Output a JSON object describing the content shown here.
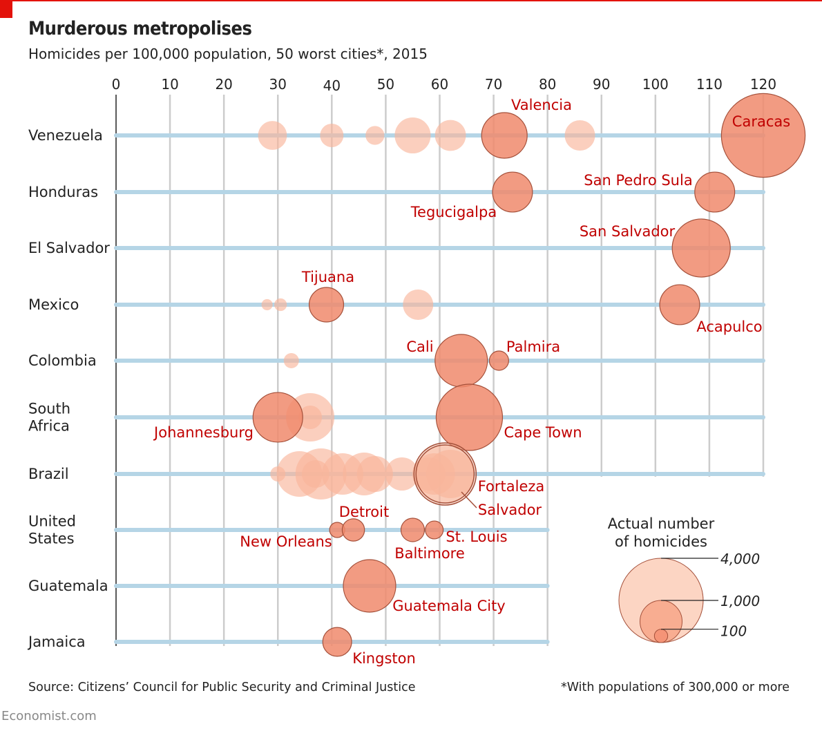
{
  "header": {
    "title": "Murderous metropolises",
    "subtitle": "Homicides per 100,000 population, 50 worst cities*, 2015"
  },
  "footer": {
    "source": "Source: Citizens’ Council for Public Security and Criminal Justice",
    "note": "*With populations of 300,000 or more",
    "brand": "Economist.com"
  },
  "colors": {
    "highlight": "#f08a6c",
    "highlight_stroke": "#a4503a",
    "other": "#f9b59b",
    "label": "#c00000",
    "row_line": "#b5d5e6",
    "grid": "#cccccc"
  },
  "chart_data": {
    "type": "scatter",
    "title": "Murderous metropolises",
    "subtitle": "Homicides per 100,000 population, 50 worst cities*, 2015",
    "xlim": [
      0,
      120
    ],
    "xticks": [
      0,
      10,
      20,
      30,
      40,
      50,
      60,
      70,
      80,
      90,
      100,
      110,
      120
    ],
    "grid": true,
    "size_encoding": "Actual number of homicides",
    "legend": {
      "title_lines": [
        "Actual number",
        "of homicides"
      ],
      "values": [
        4000,
        1000,
        100
      ],
      "labels": [
        "4,000",
        "1,000",
        "100"
      ],
      "placement": "bottom-right"
    },
    "rows": [
      {
        "country_lines": [
          "Venezuela"
        ],
        "max_axis": 120,
        "cities": [
          {
            "rate": 29,
            "homicides": 470
          },
          {
            "rate": 40,
            "homicides": 310
          },
          {
            "rate": 48,
            "homicides": 200
          },
          {
            "rate": 55,
            "homicides": 730
          },
          {
            "rate": 62,
            "homicides": 540
          },
          {
            "name": "Valencia",
            "rate": 72,
            "homicides": 1170,
            "highlight": true
          },
          {
            "rate": 86,
            "homicides": 520
          },
          {
            "name": "Caracas",
            "rate": 120,
            "homicides": 3950,
            "highlight": true
          }
        ]
      },
      {
        "country_lines": [
          "Honduras"
        ],
        "max_axis": 120,
        "cities": [
          {
            "name": "Tegucigalpa",
            "rate": 73.5,
            "homicides": 900,
            "highlight": true
          },
          {
            "name": "San Pedro Sula",
            "rate": 111,
            "homicides": 900,
            "highlight": true
          }
        ]
      },
      {
        "country_lines": [
          "El Salvador"
        ],
        "max_axis": 120,
        "cities": [
          {
            "name": "San Salvador",
            "rate": 108.5,
            "homicides": 1900,
            "highlight": true
          }
        ]
      },
      {
        "country_lines": [
          "Mexico"
        ],
        "max_axis": 120,
        "cities": [
          {
            "rate": 28,
            "homicides": 70
          },
          {
            "rate": 30.5,
            "homicides": 90
          },
          {
            "name": "Tijuana",
            "rate": 39,
            "homicides": 670,
            "highlight": true
          },
          {
            "rate": 56,
            "homicides": 520
          },
          {
            "name": "Acapulco",
            "rate": 104.5,
            "homicides": 900,
            "highlight": true
          }
        ]
      },
      {
        "country_lines": [
          "Colombia"
        ],
        "max_axis": 120,
        "cities": [
          {
            "rate": 32.5,
            "homicides": 130
          },
          {
            "name": "Cali",
            "rate": 64,
            "homicides": 1550,
            "highlight": true
          },
          {
            "name": "Palmira",
            "rate": 71,
            "homicides": 210,
            "highlight": true
          }
        ]
      },
      {
        "country_lines": [
          "South",
          "Africa"
        ],
        "max_axis": 120,
        "cities": [
          {
            "rate": 36,
            "homicides": 1320
          },
          {
            "rate": 36,
            "homicides": 310
          },
          {
            "name": "Johannesburg",
            "rate": 30,
            "homicides": 1390,
            "highlight": true
          },
          {
            "name": "Cape Town",
            "rate": 65.5,
            "homicides": 2480,
            "highlight": true
          }
        ]
      },
      {
        "country_lines": [
          "Brazil"
        ],
        "max_axis": 120,
        "cities": [
          {
            "rate": 30,
            "homicides": 130
          },
          {
            "rate": 34,
            "homicides": 1170
          },
          {
            "rate": 38,
            "homicides": 1470
          },
          {
            "rate": 37,
            "homicides": 430
          },
          {
            "rate": 42,
            "homicides": 970
          },
          {
            "rate": 46,
            "homicides": 1030
          },
          {
            "rate": 48,
            "homicides": 730
          },
          {
            "rate": 53,
            "homicides": 620
          },
          {
            "rate": 58,
            "homicides": 620
          },
          {
            "rate": 59,
            "homicides": 970
          },
          {
            "rate": 62,
            "homicides": 1320
          },
          {
            "name": "Fortaleza",
            "rate": 61,
            "homicides": 2180,
            "highlight": true,
            "ring": true
          },
          {
            "name": "Salvador",
            "rate": 61,
            "homicides": 1900,
            "highlight": true,
            "ring": true
          }
        ]
      },
      {
        "country_lines": [
          "United",
          "States"
        ],
        "max_axis": 80,
        "cities": [
          {
            "name": "New Orleans",
            "rate": 41,
            "homicides": 130,
            "highlight": true
          },
          {
            "name": "Detroit",
            "rate": 44,
            "homicides": 280,
            "highlight": true
          },
          {
            "name": "Baltimore",
            "rate": 55,
            "homicides": 310,
            "highlight": true
          },
          {
            "name": "St. Louis",
            "rate": 59,
            "homicides": 180,
            "highlight": true
          }
        ]
      },
      {
        "country_lines": [
          "Guatemala"
        ],
        "max_axis": 80,
        "cities": [
          {
            "name": "Guatemala City",
            "rate": 47,
            "homicides": 1550,
            "highlight": true
          }
        ]
      },
      {
        "country_lines": [
          "Jamaica"
        ],
        "max_axis": 80,
        "cities": [
          {
            "name": "Kingston",
            "rate": 41,
            "homicides": 470,
            "highlight": true
          }
        ]
      }
    ]
  }
}
